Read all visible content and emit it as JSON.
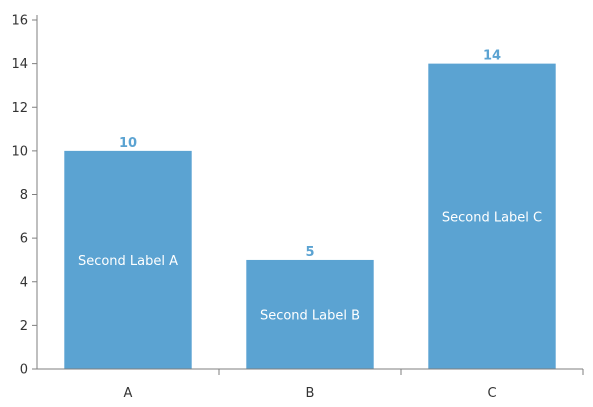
{
  "chart_data": {
    "type": "bar",
    "categories": [
      "A",
      "B",
      "C"
    ],
    "values": [
      10,
      5,
      14
    ],
    "second_labels": [
      "Second Label A",
      "Second Label B",
      "Second Label C"
    ],
    "ylim": [
      0,
      16
    ],
    "yticks": [
      0,
      2,
      4,
      6,
      8,
      10,
      12,
      14,
      16
    ],
    "title": "",
    "xlabel": "",
    "ylabel": "",
    "grid": false,
    "bar_color": "#5ba3d2",
    "value_label_color": "#5ba3d2"
  }
}
